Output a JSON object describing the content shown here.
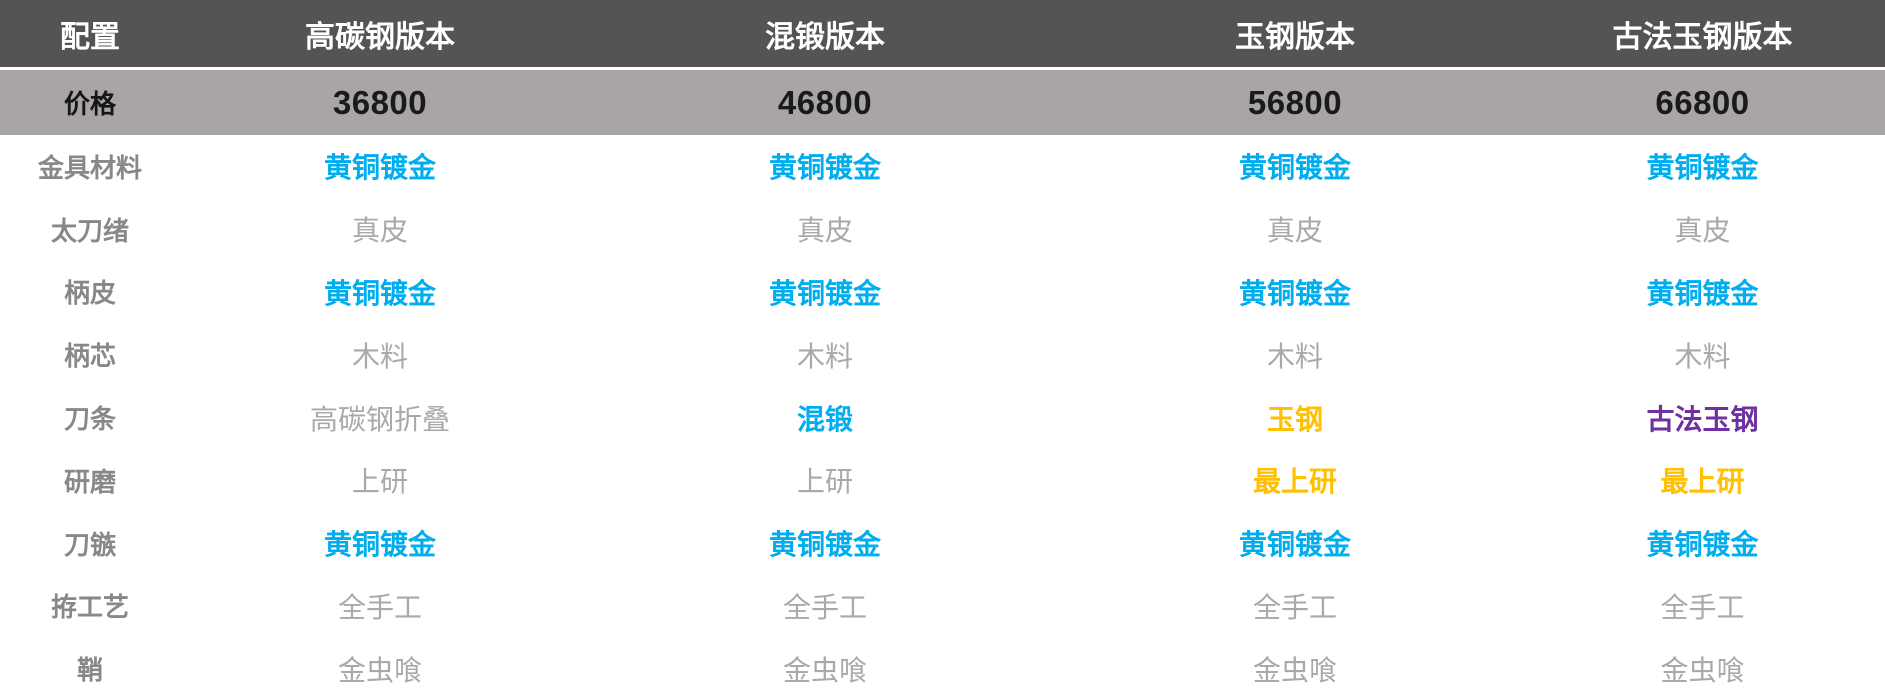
{
  "table": {
    "title": "katana-configuration-comparison",
    "columns": [
      {
        "label": "配置"
      },
      {
        "label": "高碳钢版本"
      },
      {
        "label": "混锻版本"
      },
      {
        "label": "玉钢版本"
      },
      {
        "label": "古法玉钢版本"
      }
    ],
    "price_row": {
      "label": "价格",
      "values": [
        "36800",
        "46800",
        "56800",
        "66800"
      ]
    },
    "rows": [
      {
        "label": "金具材料",
        "cells": [
          {
            "text": "黄铜镀金",
            "color": "blue"
          },
          {
            "text": "黄铜镀金",
            "color": "blue"
          },
          {
            "text": "黄铜镀金",
            "color": "blue"
          },
          {
            "text": "黄铜镀金",
            "color": "blue"
          }
        ]
      },
      {
        "label": "太刀绪",
        "cells": [
          {
            "text": "真皮",
            "color": "gray"
          },
          {
            "text": "真皮",
            "color": "gray"
          },
          {
            "text": "真皮",
            "color": "gray"
          },
          {
            "text": "真皮",
            "color": "gray"
          }
        ]
      },
      {
        "label": "柄皮",
        "cells": [
          {
            "text": "黄铜镀金",
            "color": "blue"
          },
          {
            "text": "黄铜镀金",
            "color": "blue"
          },
          {
            "text": "黄铜镀金",
            "color": "blue"
          },
          {
            "text": "黄铜镀金",
            "color": "blue"
          }
        ]
      },
      {
        "label": "柄芯",
        "cells": [
          {
            "text": "木料",
            "color": "gray"
          },
          {
            "text": "木料",
            "color": "gray"
          },
          {
            "text": "木料",
            "color": "gray"
          },
          {
            "text": "木料",
            "color": "gray"
          }
        ]
      },
      {
        "label": "刀条",
        "cells": [
          {
            "text": "高碳钢折叠",
            "color": "gray"
          },
          {
            "text": "混锻",
            "color": "blue"
          },
          {
            "text": "玉钢",
            "color": "yellow"
          },
          {
            "text": "古法玉钢",
            "color": "purple"
          }
        ]
      },
      {
        "label": "研磨",
        "cells": [
          {
            "text": "上研",
            "color": "gray"
          },
          {
            "text": "上研",
            "color": "gray"
          },
          {
            "text": "最上研",
            "color": "yellow"
          },
          {
            "text": "最上研",
            "color": "yellow"
          }
        ]
      },
      {
        "label": "刀镞",
        "cells": [
          {
            "text": "黄铜镀金",
            "color": "blue"
          },
          {
            "text": "黄铜镀金",
            "color": "blue"
          },
          {
            "text": "黄铜镀金",
            "color": "blue"
          },
          {
            "text": "黄铜镀金",
            "color": "blue"
          }
        ]
      },
      {
        "label": "拵工艺",
        "cells": [
          {
            "text": "全手工",
            "color": "gray"
          },
          {
            "text": "全手工",
            "color": "gray"
          },
          {
            "text": "全手工",
            "color": "gray"
          },
          {
            "text": "全手工",
            "color": "gray"
          }
        ]
      },
      {
        "label": "鞘",
        "cells": [
          {
            "text": "金虫喰",
            "color": "gray"
          },
          {
            "text": "金虫喰",
            "color": "gray"
          },
          {
            "text": "金虫喰",
            "color": "gray"
          },
          {
            "text": "金虫喰",
            "color": "gray"
          }
        ]
      }
    ]
  },
  "colors": {
    "header_bg": "#565452",
    "header_text": "#ffffff",
    "price_row_bg": "#a8a5a4",
    "price_text": "#1a1a1a",
    "row_label_gray": "#8a8886",
    "value_gray": "#a9a9a9",
    "value_blue": "#00aeef",
    "value_yellow": "#ffc000",
    "value_purple": "#7030a0"
  }
}
